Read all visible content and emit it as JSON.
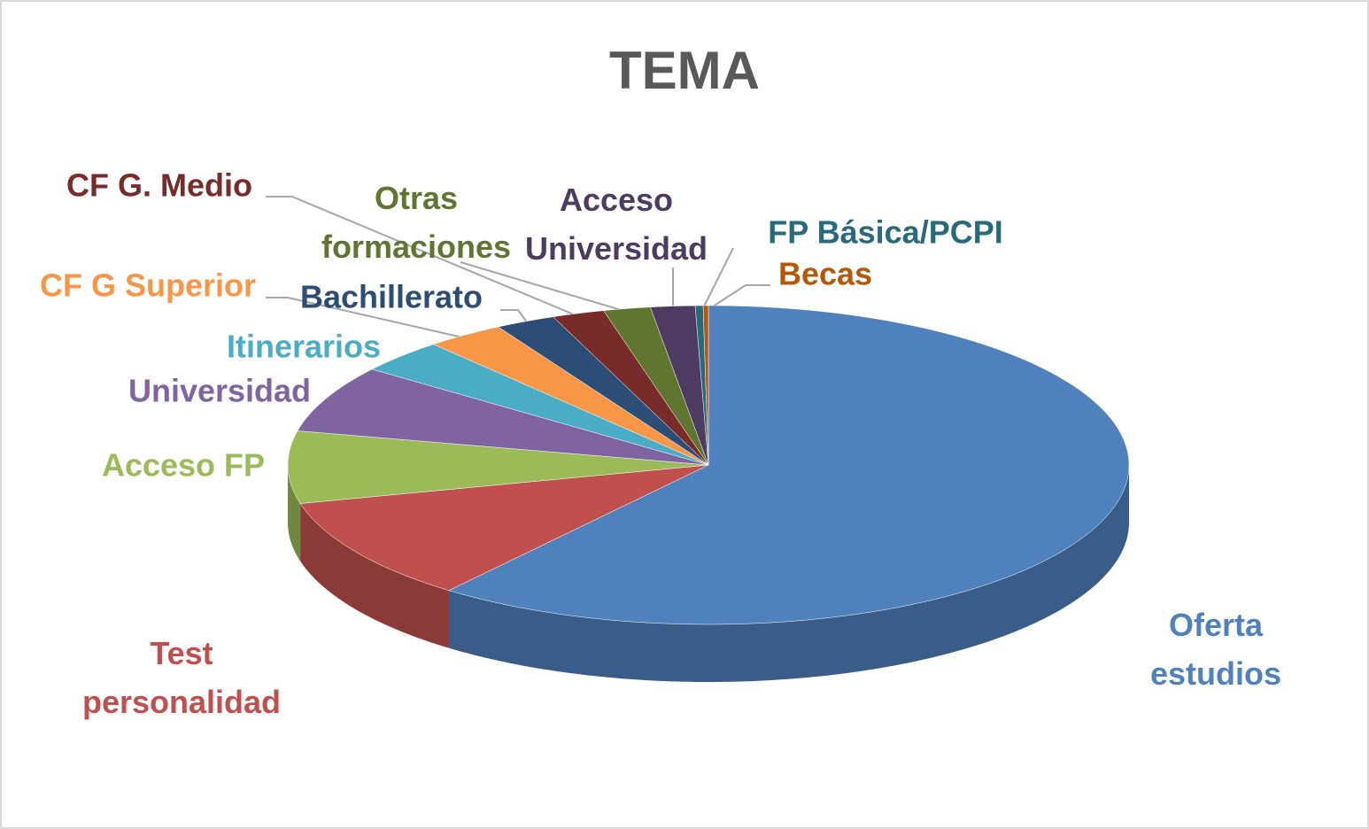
{
  "chart_data": {
    "type": "pie3d",
    "title": "TEMA",
    "categories": [
      "Oferta estudios",
      "Test personalidad",
      "Acceso FP",
      "Universidad",
      "Itinerarios",
      "CF G Superior",
      "Bachillerato",
      "CF G. Medio",
      "Otras formaciones",
      "Acceso Universidad",
      "FP Básica/PCPI",
      "Becas"
    ],
    "values": [
      60.4,
      10.5,
      7.3,
      6.8,
      3.4,
      3.0,
      2.3,
      2.0,
      1.8,
      1.7,
      0.3,
      0.2
    ],
    "colors": [
      "#4f81bd",
      "#c0504d",
      "#9bbb59",
      "#8064a2",
      "#4bacc6",
      "#f79646",
      "#2c4d75",
      "#772c2a",
      "#5f7530",
      "#4d3b62",
      "#276a7c",
      "#b65708"
    ]
  }
}
